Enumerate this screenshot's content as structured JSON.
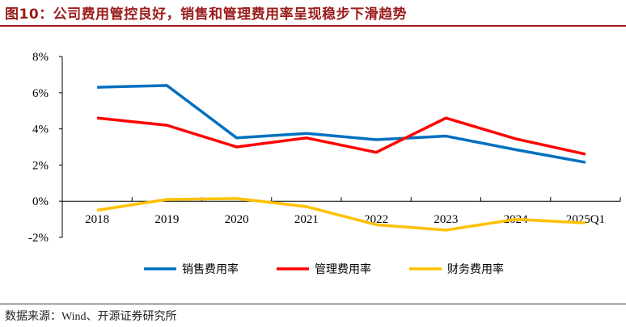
{
  "title": "图10：公司费用管控良好，销售和管理费用率呈现稳步下滑趋势",
  "source": "数据来源：Wind、开源证券研究所",
  "chart_data": {
    "type": "line",
    "categories": [
      "2018",
      "2019",
      "2020",
      "2021",
      "2022",
      "2023",
      "2024",
      "2025Q1"
    ],
    "ylim": [
      -2,
      8
    ],
    "yticks": [
      "-2%",
      "0%",
      "2%",
      "4%",
      "6%",
      "8%"
    ],
    "ytick_values": [
      -2,
      0,
      2,
      4,
      6,
      8
    ],
    "legend_position": "bottom",
    "grid": false,
    "series": [
      {
        "name": "销售费用率",
        "color": "#0070c0",
        "values": [
          6.3,
          6.4,
          3.5,
          3.75,
          3.4,
          3.6,
          2.85,
          2.15
        ]
      },
      {
        "name": "管理费用率",
        "color": "#ff0000",
        "values": [
          4.6,
          4.2,
          3.0,
          3.5,
          2.7,
          4.6,
          3.45,
          2.6
        ]
      },
      {
        "name": "财务费用率",
        "color": "#ffc000",
        "values": [
          -0.5,
          0.1,
          0.15,
          -0.3,
          -1.3,
          -1.6,
          -1.0,
          -1.2
        ]
      }
    ]
  }
}
